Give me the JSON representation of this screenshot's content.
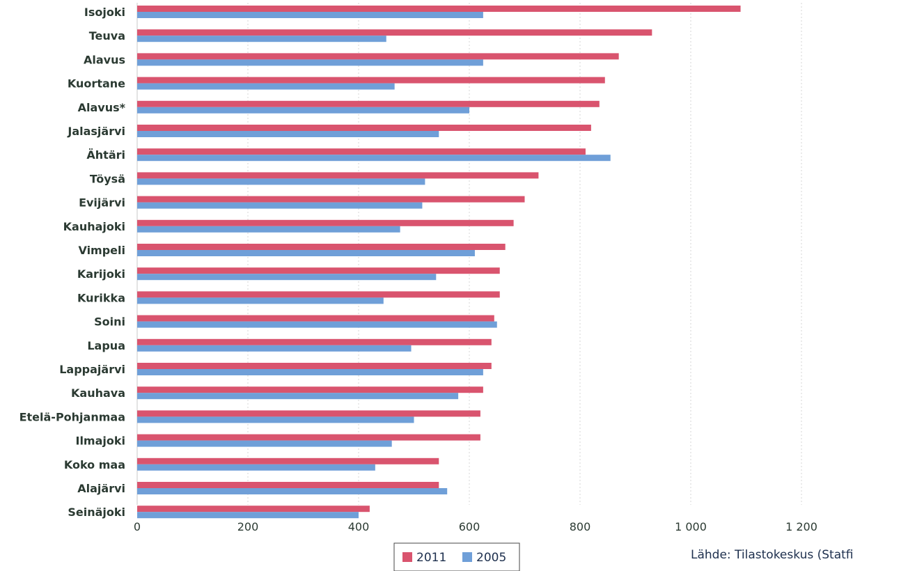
{
  "chart_data": {
    "type": "bar",
    "orientation": "horizontal",
    "categories": [
      "Isojoki",
      "Teuva",
      "Alavus",
      "Kuortane",
      "Alavus*",
      "Jalasjärvi",
      "Ähtäri",
      "Töysä",
      "Evijärvi",
      "Kauhajoki",
      "Vimpeli",
      "Karijoki",
      "Kurikka",
      "Soini",
      "Lapua",
      "Lappajärvi",
      "Kauhava",
      "Etelä-Pohjanmaa",
      "Ilmajoki",
      "Koko maa",
      "Alajärvi",
      "Seinäjoki"
    ],
    "series": [
      {
        "name": "2011",
        "color": "#d9546e",
        "values": [
          1090,
          930,
          870,
          845,
          835,
          820,
          810,
          725,
          700,
          680,
          665,
          655,
          655,
          645,
          640,
          640,
          625,
          620,
          620,
          545,
          545,
          420
        ]
      },
      {
        "name": "2005",
        "color": "#6f9fd8",
        "values": [
          625,
          450,
          625,
          465,
          600,
          545,
          855,
          520,
          515,
          475,
          610,
          540,
          445,
          650,
          495,
          625,
          580,
          500,
          460,
          430,
          560,
          400
        ]
      }
    ],
    "xlim": [
      0,
      1200
    ],
    "xticks": [
      "0",
      "200",
      "400",
      "600",
      "800",
      "1 000",
      "1 200"
    ],
    "grid": true,
    "legend_position": "bottom-center",
    "source": "Lähde: Tilastokeskus (Statfi"
  }
}
